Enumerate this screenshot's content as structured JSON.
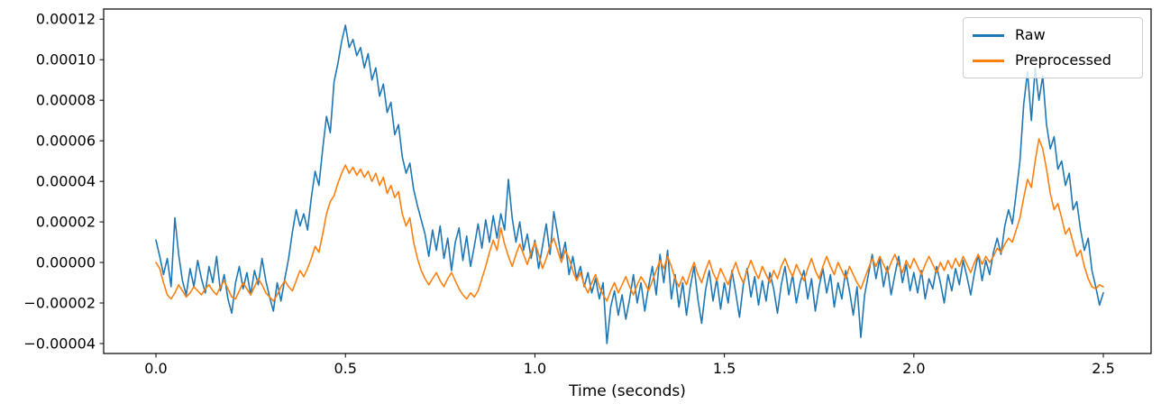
{
  "chart_data": {
    "type": "line",
    "title": "",
    "xlabel": "Time (seconds)",
    "ylabel": "",
    "grid": false,
    "legend_position": "upper right",
    "xlim": [
      -0.138,
      2.626
    ],
    "ylim": [
      -4.49e-05,
      0.000125
    ],
    "x_ticks": [
      {
        "value": 0.0,
        "label": "0.0"
      },
      {
        "value": 0.5,
        "label": "0.5"
      },
      {
        "value": 1.0,
        "label": "1.0"
      },
      {
        "value": 1.5,
        "label": "1.5"
      },
      {
        "value": 2.0,
        "label": "2.0"
      },
      {
        "value": 2.5,
        "label": "2.5"
      }
    ],
    "y_ticks": [
      {
        "value": 0.00012,
        "label": "0.00012"
      },
      {
        "value": 0.0001,
        "label": "0.00010"
      },
      {
        "value": 8e-05,
        "label": "0.00008"
      },
      {
        "value": 6e-05,
        "label": "0.00006"
      },
      {
        "value": 4e-05,
        "label": "0.00004"
      },
      {
        "value": 2e-05,
        "label": "0.00002"
      },
      {
        "value": 0.0,
        "label": "0.00000"
      },
      {
        "value": -2e-05,
        "label": "−0.00002"
      },
      {
        "value": -4e-05,
        "label": "−0.00004"
      }
    ],
    "x_start": 0.0,
    "x_step": 0.01,
    "value_scale": 1e-05,
    "series": [
      {
        "name": "Raw",
        "color": "#1f77b4",
        "values": [
          1.1,
          0.3,
          -0.6,
          0.2,
          -1.2,
          2.2,
          0.4,
          -0.9,
          -1.6,
          -0.3,
          -1.2,
          0.1,
          -0.8,
          -1.5,
          -0.2,
          -1.0,
          0.3,
          -1.4,
          -0.6,
          -1.8,
          -2.5,
          -1.0,
          -0.2,
          -1.3,
          -0.5,
          -1.6,
          -0.4,
          -1.1,
          0.2,
          -0.9,
          -1.7,
          -2.4,
          -1.0,
          -1.9,
          -0.8,
          0.2,
          1.5,
          2.6,
          1.8,
          2.4,
          1.6,
          3.2,
          4.5,
          3.8,
          5.6,
          7.2,
          6.4,
          8.9,
          9.8,
          10.9,
          11.7,
          10.6,
          11.0,
          10.2,
          10.6,
          9.6,
          10.3,
          9.0,
          9.6,
          8.2,
          8.8,
          7.4,
          7.9,
          6.3,
          6.8,
          5.2,
          4.4,
          4.9,
          3.6,
          2.8,
          2.1,
          1.4,
          0.3,
          1.6,
          0.6,
          1.8,
          0.2,
          1.2,
          -0.4,
          1.0,
          1.7,
          0.1,
          1.3,
          -0.2,
          0.8,
          1.9,
          0.7,
          2.1,
          1.0,
          2.3,
          1.2,
          2.4,
          1.6,
          4.1,
          2.2,
          1.0,
          2.0,
          0.6,
          1.4,
          0.2,
          1.1,
          -0.3,
          0.8,
          1.9,
          0.4,
          2.5,
          1.4,
          0.2,
          1.0,
          -0.6,
          0.3,
          -0.8,
          -0.2,
          -1.2,
          -0.5,
          -1.5,
          -0.8,
          -1.8,
          -1.0,
          -4.0,
          -2.2,
          -1.4,
          -2.6,
          -1.6,
          -2.8,
          -1.8,
          -0.6,
          -2.0,
          -1.0,
          -2.4,
          -1.2,
          -0.2,
          -1.6,
          0.4,
          -1.0,
          0.6,
          -1.8,
          -0.6,
          -2.2,
          -1.0,
          -2.6,
          -1.2,
          -0.2,
          -1.8,
          -3.0,
          -1.4,
          -0.4,
          -1.9,
          -0.8,
          -2.3,
          -1.0,
          -2.0,
          -0.4,
          -1.5,
          -2.7,
          -1.1,
          -0.3,
          -1.7,
          -0.7,
          -2.1,
          -0.9,
          -1.9,
          -0.5,
          -1.3,
          -2.5,
          -1.1,
          -0.2,
          -1.6,
          -0.6,
          -2.0,
          -1.0,
          -0.4,
          -1.8,
          -0.8,
          -2.4,
          -1.2,
          -0.3,
          -1.5,
          -0.6,
          -2.2,
          -1.0,
          -1.8,
          -0.4,
          -1.4,
          -2.6,
          -1.2,
          -3.7,
          -1.6,
          -0.6,
          0.4,
          -0.8,
          0.2,
          -1.2,
          -0.2,
          -1.6,
          -0.6,
          0.3,
          -1.0,
          -0.1,
          -1.4,
          -0.5,
          -1.5,
          -0.4,
          -1.8,
          -0.8,
          -1.3,
          -0.2,
          -1.0,
          -2.0,
          -0.6,
          -1.4,
          -0.3,
          -1.1,
          0.1,
          -0.7,
          -1.6,
          -0.5,
          0.4,
          -0.9,
          0.1,
          -0.6,
          0.5,
          1.2,
          0.4,
          1.8,
          2.6,
          1.9,
          3.4,
          5.0,
          7.8,
          9.4,
          7.0,
          9.6,
          8.0,
          9.2,
          6.8,
          5.6,
          6.2,
          4.6,
          5.0,
          3.8,
          4.4,
          2.6,
          3.0,
          1.6,
          0.6,
          1.2,
          -0.4,
          -1.2,
          -2.1,
          -1.5
        ]
      },
      {
        "name": "Preprocessed",
        "color": "#ff7f0e",
        "values": [
          0.0,
          -0.3,
          -1.0,
          -1.6,
          -1.8,
          -1.5,
          -1.1,
          -1.4,
          -1.7,
          -1.5,
          -1.2,
          -1.4,
          -1.6,
          -1.3,
          -1.1,
          -1.4,
          -1.6,
          -1.2,
          -0.9,
          -1.3,
          -1.7,
          -1.8,
          -1.4,
          -1.0,
          -1.3,
          -1.6,
          -1.2,
          -0.8,
          -1.1,
          -1.5,
          -1.7,
          -1.9,
          -1.6,
          -1.2,
          -0.9,
          -1.2,
          -1.4,
          -0.9,
          -0.4,
          -0.7,
          -0.3,
          0.2,
          0.8,
          0.5,
          1.4,
          2.4,
          3.0,
          3.3,
          3.9,
          4.4,
          4.8,
          4.4,
          4.7,
          4.3,
          4.6,
          4.2,
          4.5,
          4.0,
          4.4,
          3.8,
          4.2,
          3.4,
          3.8,
          3.2,
          3.5,
          2.4,
          1.8,
          2.2,
          1.0,
          0.2,
          -0.4,
          -0.8,
          -1.1,
          -0.8,
          -0.5,
          -0.9,
          -1.2,
          -0.8,
          -0.5,
          -0.9,
          -1.3,
          -1.6,
          -1.8,
          -1.5,
          -1.7,
          -1.4,
          -0.8,
          -0.2,
          0.5,
          1.1,
          0.6,
          1.7,
          0.9,
          0.3,
          -0.2,
          0.4,
          0.9,
          0.4,
          -0.1,
          0.5,
          1.0,
          0.4,
          -0.3,
          0.2,
          0.8,
          1.2,
          0.6,
          0.0,
          0.6,
          0.2,
          -0.4,
          -0.9,
          -0.5,
          -1.1,
          -1.5,
          -1.0,
          -0.6,
          -1.2,
          -1.6,
          -1.9,
          -1.4,
          -1.0,
          -1.5,
          -1.1,
          -0.7,
          -1.2,
          -1.6,
          -1.1,
          -0.7,
          -1.0,
          -1.4,
          -0.9,
          -0.4,
          0.1,
          -0.3,
          0.3,
          -0.2,
          -0.8,
          -1.2,
          -0.7,
          -1.1,
          -0.5,
          0.0,
          -0.6,
          -1.0,
          -0.4,
          0.1,
          -0.5,
          -0.9,
          -0.3,
          -0.7,
          -1.1,
          -0.5,
          0.0,
          -0.6,
          -1.0,
          -0.4,
          0.1,
          -0.4,
          -0.8,
          -0.2,
          -0.6,
          -1.0,
          -0.4,
          -0.8,
          -0.2,
          0.2,
          -0.3,
          -0.7,
          -0.1,
          -0.5,
          -0.9,
          -0.3,
          0.2,
          -0.4,
          -0.8,
          -0.2,
          0.3,
          -0.2,
          -0.6,
          0.0,
          -0.4,
          -0.8,
          -0.2,
          -0.6,
          -1.0,
          -1.3,
          -0.8,
          -0.3,
          0.2,
          -0.2,
          0.3,
          -0.1,
          -0.5,
          0.0,
          0.4,
          -0.1,
          -0.5,
          0.1,
          -0.3,
          0.2,
          -0.2,
          -0.6,
          -0.1,
          0.3,
          -0.1,
          -0.5,
          0.0,
          -0.4,
          0.1,
          -0.3,
          0.2,
          -0.2,
          0.3,
          -0.1,
          -0.5,
          0.0,
          0.4,
          -0.1,
          0.3,
          0.0,
          0.3,
          0.7,
          0.5,
          0.9,
          1.2,
          1.0,
          1.6,
          2.2,
          3.2,
          4.1,
          3.7,
          5.0,
          6.1,
          5.6,
          4.6,
          3.4,
          2.6,
          2.9,
          2.2,
          1.4,
          1.7,
          1.0,
          0.3,
          0.6,
          -0.2,
          -0.8,
          -1.2,
          -1.3,
          -1.1,
          -1.2
        ]
      }
    ]
  },
  "legend": {
    "items": [
      {
        "label": "Raw"
      },
      {
        "label": "Preprocessed"
      }
    ]
  }
}
